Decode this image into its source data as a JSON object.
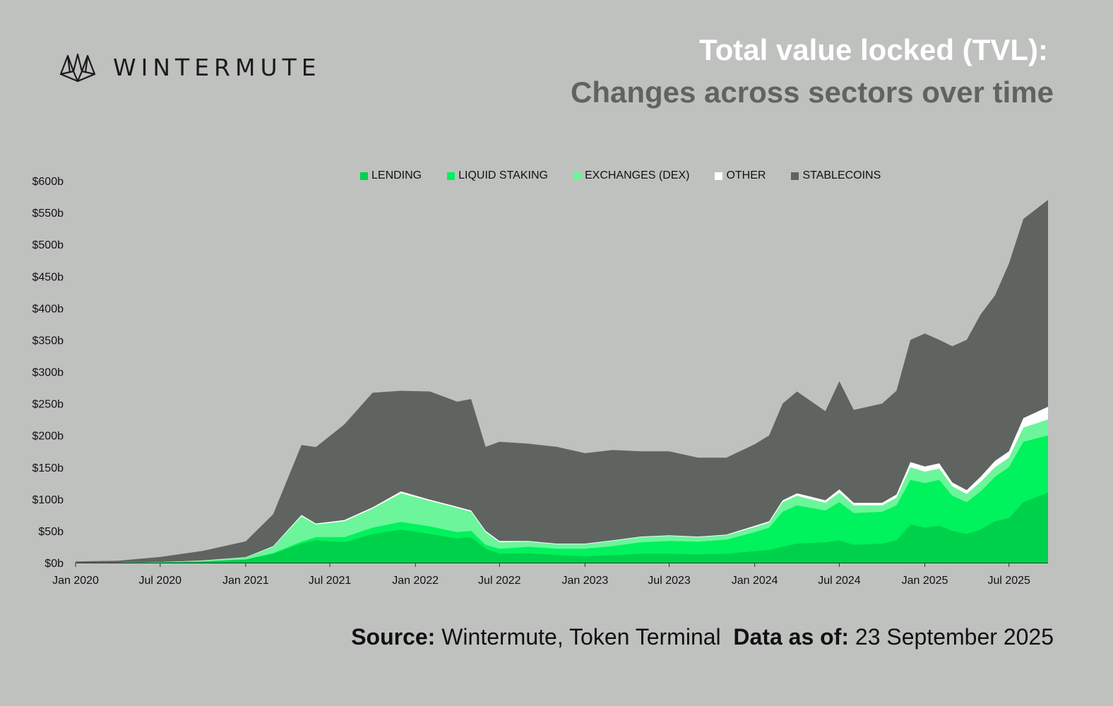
{
  "brand": {
    "name": "WINTERMUTE",
    "logo_icon": "wintermute-logo-icon"
  },
  "header": {
    "title": "Total value locked (TVL):",
    "subtitle": "Changes across sectors over time"
  },
  "footer": {
    "source_label": "Source:",
    "source_value": "Wintermute, Token Terminal",
    "date_label": "Data as of:",
    "date_value": "23 September 2025"
  },
  "colors": {
    "background": "#bfc1bf",
    "lending": "#00d14a",
    "liquid_staking": "#00f25c",
    "exchanges": "#6cf59b",
    "other": "#ffffff",
    "stablecoins": "#5f6461"
  },
  "chart_data": {
    "type": "area",
    "stacked": true,
    "title": "Total value locked (TVL):",
    "subtitle": "Changes across sectors over time",
    "xlabel": "",
    "ylabel": "",
    "ylim": [
      0,
      600
    ],
    "yticks": [
      "$0b",
      "$50b",
      "$100b",
      "$150b",
      "$200b",
      "$250b",
      "$300b",
      "$350b",
      "$400b",
      "$450b",
      "$500b",
      "$550b",
      "$600b"
    ],
    "xticks": [
      "Jan 2020",
      "Jul 2020",
      "Jan 2021",
      "Jul 2021",
      "Jan 2022",
      "Jul 2022",
      "Jan 2023",
      "Jul 2023",
      "Jan 2024",
      "Jul 2024",
      "Jan 2025",
      "Jul 2025"
    ],
    "legend_position": "top-center",
    "grid": false,
    "x": [
      "2020-01",
      "2020-04",
      "2020-07",
      "2020-10",
      "2021-01",
      "2021-03",
      "2021-05",
      "2021-06",
      "2021-08",
      "2021-10",
      "2021-12",
      "2022-02",
      "2022-04",
      "2022-05",
      "2022-06",
      "2022-07",
      "2022-09",
      "2022-11",
      "2023-01",
      "2023-03",
      "2023-05",
      "2023-07",
      "2023-09",
      "2023-11",
      "2024-01",
      "2024-02",
      "2024-03",
      "2024-04",
      "2024-06",
      "2024-07",
      "2024-08",
      "2024-10",
      "2024-11",
      "2024-12",
      "2025-01",
      "2025-02",
      "2025-03",
      "2025-04",
      "2025-05",
      "2025-06",
      "2025-07",
      "2025-08",
      "2025-09"
    ],
    "series": [
      {
        "name": "LENDING",
        "color": "#00d14a",
        "values": [
          0,
          0,
          0.5,
          2,
          5,
          14,
          30,
          35,
          32,
          45,
          52,
          45,
          38,
          40,
          22,
          14,
          15,
          12,
          10,
          12,
          14,
          14,
          13,
          14,
          18,
          20,
          25,
          30,
          32,
          35,
          28,
          30,
          35,
          60,
          55,
          58,
          50,
          45,
          52,
          65,
          70,
          95,
          110
        ]
      },
      {
        "name": "LIQUID STAKING",
        "color": "#00f25c",
        "values": [
          0,
          0,
          0,
          0,
          0,
          1,
          3,
          5,
          8,
          10,
          12,
          12,
          10,
          10,
          6,
          8,
          10,
          10,
          12,
          14,
          18,
          20,
          20,
          22,
          30,
          35,
          55,
          60,
          50,
          60,
          50,
          50,
          55,
          70,
          70,
          72,
          55,
          50,
          60,
          70,
          80,
          95,
          90
        ]
      },
      {
        "name": "EXCHANGES (DEX)",
        "color": "#6cf59b",
        "values": [
          0,
          0,
          0.5,
          1,
          3,
          10,
          40,
          20,
          25,
          30,
          45,
          40,
          38,
          30,
          20,
          10,
          8,
          7,
          7,
          8,
          8,
          8,
          7,
          7,
          8,
          8,
          15,
          15,
          12,
          15,
          12,
          10,
          12,
          20,
          18,
          18,
          15,
          13,
          15,
          15,
          15,
          22,
          25
        ]
      },
      {
        "name": "OTHER",
        "color": "#ffffff",
        "values": [
          0,
          0,
          0,
          0.5,
          0.5,
          1,
          2,
          1.5,
          2,
          2,
          3,
          2,
          2,
          2,
          2,
          2,
          1,
          1,
          1,
          1,
          1,
          1,
          1,
          1,
          2,
          2,
          3,
          4,
          4,
          5,
          4,
          4,
          5,
          8,
          8,
          8,
          6,
          6,
          8,
          10,
          10,
          15,
          20
        ]
      },
      {
        "name": "STABLECOINS",
        "color": "#5f6461",
        "values": [
          2,
          3,
          8,
          15,
          25,
          50,
          110,
          120,
          150,
          180,
          158,
          170,
          165,
          175,
          132,
          156,
          153,
          152,
          142,
          142,
          134,
          132,
          124,
          121,
          128,
          135,
          152,
          160,
          140,
          170,
          146,
          156,
          163,
          192,
          209,
          194,
          214,
          236,
          255,
          260,
          295,
          313,
          325
        ]
      }
    ]
  }
}
